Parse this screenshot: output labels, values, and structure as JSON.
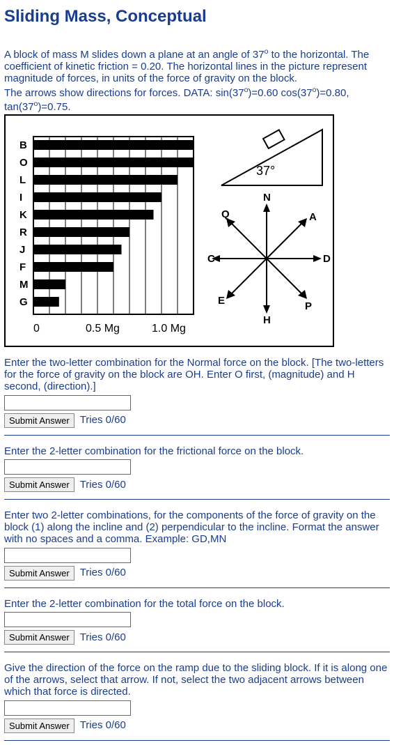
{
  "title": "Sliding Mass, Conceptual",
  "desc1": "A block of mass M slides down a plane at an angle of 37",
  "desc1b": " to the horizontal. The coefficient of kinetic friction = 0.20. The horizontal lines in the picture represent magnitude of forces, in units of the force of gravity on the block.",
  "desc2a": "The arrows show directions for forces. DATA: sin(37",
  "desc2b": ")=0.60 cos(37",
  "desc2c": ")=0.80, tan(37",
  "desc2d": ")=0.75.",
  "q1": "Enter the two-letter combination for the Normal force on the block. [The two-letters for the force of gravity on the block are OH. Enter O first, (magnitude) and H second, (direction).]",
  "q2": "Enter the 2-letter combination for the frictional force on the block.",
  "q3": "Enter two 2-letter combinations, for the components of the force of gravity on the block (1) along the incline and (2) perpendicular to the incline. Format the answer with no spaces and a comma. Example: GD,MN",
  "q4": "Enter the 2-letter combination for the total force on the block.",
  "q5": "Give the direction of the force on the ramp due to the sliding block. If it is along one of the arrows, select that arrow. If not, select the two adjacent arrows between which that force is directed.",
  "submit_label": "Submit Answer",
  "tries_label": "Tries 0/60",
  "figure": {
    "angle_label": "37°",
    "letters": [
      "B",
      "O",
      "L",
      "I",
      "K",
      "R",
      "J",
      "F",
      "M",
      "G"
    ],
    "bar_lengths": [
      1.0,
      1.0,
      0.9,
      0.8,
      0.75,
      0.6,
      0.55,
      0.5,
      0.2,
      0.16
    ],
    "x_labels": [
      "0",
      "0.5 Mg",
      "1.0 Mg"
    ],
    "dir_labels": [
      "N",
      "Q",
      "A",
      "C",
      "D",
      "E",
      "P",
      "H"
    ]
  }
}
